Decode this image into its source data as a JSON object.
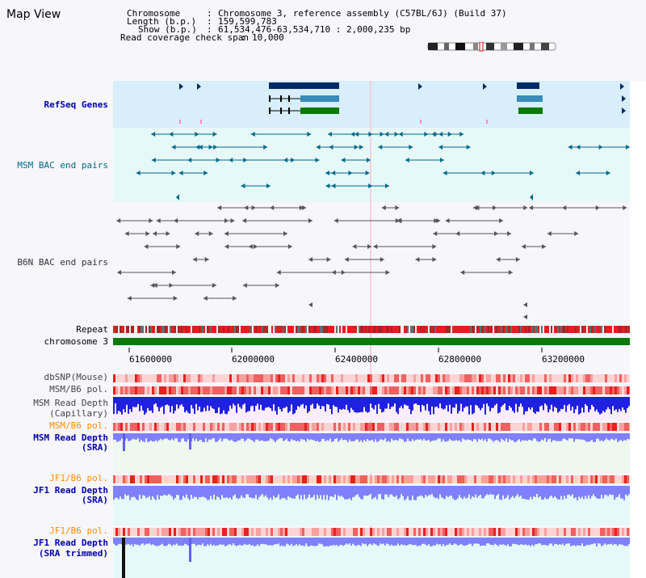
{
  "header": {
    "title": "Map View",
    "chromosome_label": "Chromosome",
    "chromosome_value": "Chromosome 3, reference assembly (C57BL/6J) (Build 37)",
    "length_label": "Length (b.p.)",
    "length_value": "159,599,783",
    "show_label": "Show (b.p.)",
    "show_value": "61,534,476-63,534,710 : 2,000,235 bp",
    "coverage_label": "Read coverage check span",
    "coverage_value": "10,000"
  },
  "tracks": {
    "refseq": "RefSeq Genes",
    "msm_bac": "MSM BAC end pairs",
    "b6n_bac": "B6N BAC end pairs",
    "repeat": "Repeat",
    "chromosome": "chromosome 3",
    "dbsnp": "dbSNP(Mouse)",
    "msm_b6_pol": "MSM/B6 pol.",
    "msm_depth_cap_1": "MSM Read Depth",
    "msm_depth_cap_2": "(Capillary)",
    "msm_b6_pol2": "MSM/B6 pol.",
    "msm_depth_sra_1": "MSM Read Depth",
    "msm_depth_sra_2": "(SRA)",
    "jf1_b6_pol": "JF1/B6 pol.",
    "jf1_depth_sra_1": "JF1 Read Depth",
    "jf1_depth_sra_2": "(SRA)",
    "jf1_b6_pol2": "JF1/B6 pol.",
    "jf1_depth_trim_1": "JF1 Read Depth",
    "jf1_depth_trim_2": "(SRA trimmed)"
  },
  "axis": {
    "ticks": [
      "61600000",
      "62000000",
      "62400000",
      "62800000",
      "63200000"
    ]
  },
  "colors": {
    "refseq_bg": "#d8eefa",
    "msm_bg": "#e6f8f8",
    "gene_navy": "#002a66",
    "gene_teal": "#3a8cb8",
    "gene_green": "#0a7a0a",
    "bac_teal": "#006a8a",
    "bac_grey": "#555555",
    "chrom_green": "#0a7a0a",
    "depth_blue": "#2020e0",
    "depth_light": "#8080ff"
  }
}
